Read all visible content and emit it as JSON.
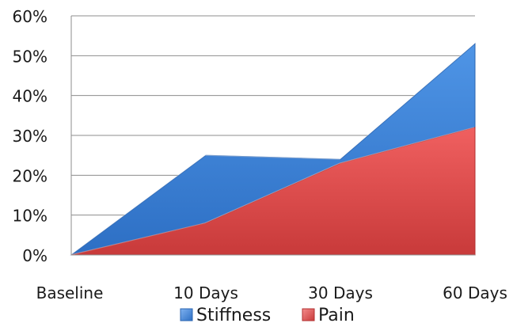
{
  "chart_data": {
    "type": "area",
    "categories": [
      "Baseline",
      "10 Days",
      "30 Days",
      "60 Days"
    ],
    "series": [
      {
        "name": "Stiffness",
        "values": [
          0,
          25,
          24,
          53
        ],
        "color": "#3f7fd0"
      },
      {
        "name": "Pain",
        "values": [
          0,
          8,
          23,
          32
        ],
        "color": "#d94a4a"
      }
    ],
    "y_ticks": [
      "0%",
      "10%",
      "20%",
      "30%",
      "40%",
      "50%",
      "60%"
    ],
    "ylim": [
      0,
      60
    ],
    "y_unit": "%",
    "grid": true,
    "legend": "bottom",
    "stacked": false
  }
}
